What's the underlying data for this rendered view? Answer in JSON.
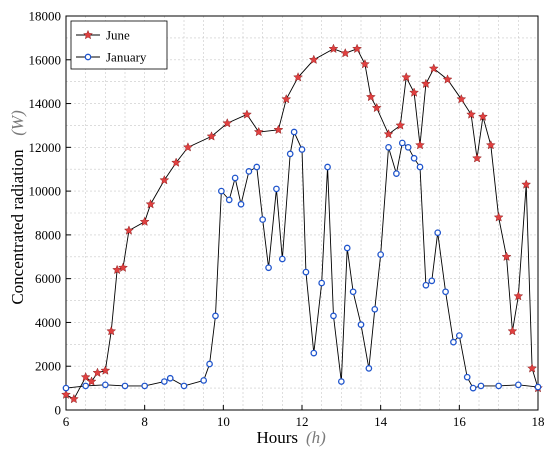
{
  "chart_data": {
    "type": "line",
    "xlabel": "Hours",
    "xlabel_unit": "h",
    "ylabel": "Concentrated radiation",
    "ylabel_unit": "W",
    "xlim": [
      6,
      18
    ],
    "ylim": [
      0,
      18000
    ],
    "x_ticks": [
      "6",
      "8",
      "10",
      "12",
      "14",
      "16",
      "18"
    ],
    "y_ticks": [
      "0",
      "2000",
      "4000",
      "6000",
      "8000",
      "10000",
      "12000",
      "14000",
      "16000",
      "18000"
    ],
    "grid": true,
    "legend_position": "top-left",
    "series": [
      {
        "name": "June",
        "line_color": "#000000",
        "marker_color": "#e04040",
        "marker": "star",
        "points": [
          [
            6.0,
            700
          ],
          [
            6.2,
            500
          ],
          [
            6.5,
            1500
          ],
          [
            6.65,
            1300
          ],
          [
            6.8,
            1700
          ],
          [
            7.0,
            1800
          ],
          [
            7.15,
            3600
          ],
          [
            7.3,
            6400
          ],
          [
            7.45,
            6500
          ],
          [
            7.6,
            8200
          ],
          [
            8.0,
            8600
          ],
          [
            8.15,
            9400
          ],
          [
            8.5,
            10500
          ],
          [
            8.8,
            11300
          ],
          [
            9.1,
            12000
          ],
          [
            9.7,
            12500
          ],
          [
            10.1,
            13100
          ],
          [
            10.6,
            13500
          ],
          [
            10.9,
            12700
          ],
          [
            11.4,
            12800
          ],
          [
            11.6,
            14200
          ],
          [
            11.9,
            15200
          ],
          [
            12.3,
            16000
          ],
          [
            12.8,
            16500
          ],
          [
            13.1,
            16300
          ],
          [
            13.4,
            16500
          ],
          [
            13.6,
            15800
          ],
          [
            13.75,
            14300
          ],
          [
            13.9,
            13800
          ],
          [
            14.2,
            12600
          ],
          [
            14.5,
            13000
          ],
          [
            14.65,
            15200
          ],
          [
            14.85,
            14500
          ],
          [
            15.0,
            12100
          ],
          [
            15.15,
            14900
          ],
          [
            15.35,
            15600
          ],
          [
            15.7,
            15100
          ],
          [
            16.05,
            14200
          ],
          [
            16.3,
            13500
          ],
          [
            16.45,
            11500
          ],
          [
            16.6,
            13400
          ],
          [
            16.8,
            12100
          ],
          [
            17.0,
            8800
          ],
          [
            17.2,
            7000
          ],
          [
            17.35,
            3600
          ],
          [
            17.5,
            5200
          ],
          [
            17.7,
            10300
          ],
          [
            17.85,
            1900
          ],
          [
            18.0,
            1000
          ]
        ]
      },
      {
        "name": "January",
        "line_color": "#000000",
        "marker_color": "#2055cc",
        "marker": "circle",
        "points": [
          [
            6.0,
            1000
          ],
          [
            6.5,
            1100
          ],
          [
            7.0,
            1150
          ],
          [
            7.5,
            1100
          ],
          [
            8.0,
            1100
          ],
          [
            8.5,
            1300
          ],
          [
            8.65,
            1450
          ],
          [
            9.0,
            1100
          ],
          [
            9.5,
            1350
          ],
          [
            9.65,
            2100
          ],
          [
            9.8,
            4300
          ],
          [
            9.95,
            10000
          ],
          [
            10.15,
            9600
          ],
          [
            10.3,
            10600
          ],
          [
            10.45,
            9400
          ],
          [
            10.65,
            10900
          ],
          [
            10.85,
            11100
          ],
          [
            11.0,
            8700
          ],
          [
            11.15,
            6500
          ],
          [
            11.35,
            10100
          ],
          [
            11.5,
            6900
          ],
          [
            11.7,
            11700
          ],
          [
            11.8,
            12700
          ],
          [
            12.0,
            11900
          ],
          [
            12.1,
            6300
          ],
          [
            12.3,
            2600
          ],
          [
            12.5,
            5800
          ],
          [
            12.65,
            11100
          ],
          [
            12.8,
            4300
          ],
          [
            13.0,
            1300
          ],
          [
            13.15,
            7400
          ],
          [
            13.3,
            5400
          ],
          [
            13.5,
            3900
          ],
          [
            13.7,
            1900
          ],
          [
            13.85,
            4600
          ],
          [
            14.0,
            7100
          ],
          [
            14.2,
            12000
          ],
          [
            14.4,
            10800
          ],
          [
            14.55,
            12200
          ],
          [
            14.7,
            12000
          ],
          [
            14.85,
            11500
          ],
          [
            15.0,
            11100
          ],
          [
            15.15,
            5700
          ],
          [
            15.3,
            5900
          ],
          [
            15.45,
            8100
          ],
          [
            15.65,
            5400
          ],
          [
            15.85,
            3100
          ],
          [
            16.0,
            3400
          ],
          [
            16.2,
            1500
          ],
          [
            16.35,
            1000
          ],
          [
            16.55,
            1100
          ],
          [
            17.0,
            1100
          ],
          [
            17.5,
            1150
          ],
          [
            18.0,
            1050
          ]
        ]
      }
    ]
  }
}
